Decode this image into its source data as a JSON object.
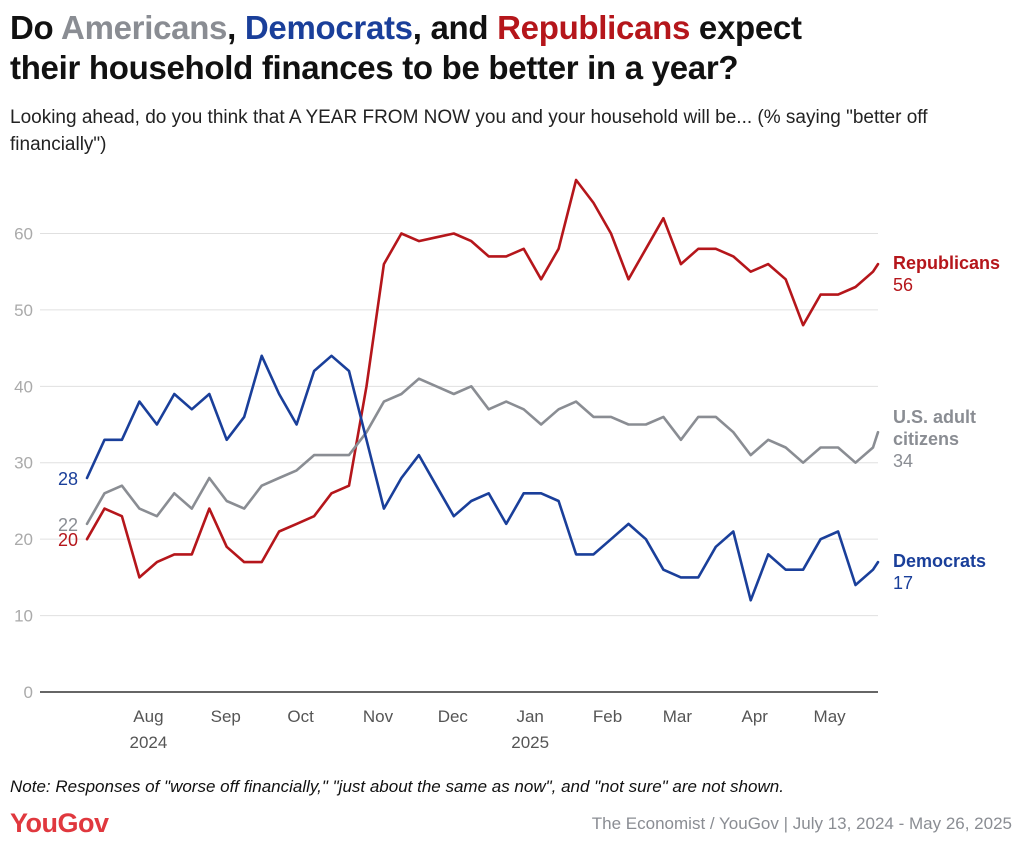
{
  "title": {
    "part1": "Do ",
    "americans": "Americans",
    "part2": ", ",
    "democrats": "Democrats",
    "part3": ", and ",
    "republicans": "Republicans",
    "part4": " expect",
    "line2": "their household finances to be better in a year?"
  },
  "subtitle": "Looking ahead, do you think that A YEAR FROM NOW you and your household will be... (% saying \"better off financially\")",
  "note": "Note: Responses of \"worse off financially,\" \"just about the same as now\", and \"not sure\" are not shown.",
  "logo": "YouGov",
  "source": "The Economist / YouGov | July 13, 2024 - May 26, 2025",
  "colors": {
    "Republicans": "#b5161b",
    "Democrats": "#1a3f9a",
    "U.S. adult citizens": "#8a8d93",
    "grid": "#e0e0e0",
    "axis": "#333333",
    "tick": "#aaaaaa"
  },
  "chart_data": {
    "type": "line",
    "ylim": [
      0,
      67
    ],
    "yticks": [
      0,
      10,
      20,
      30,
      40,
      50,
      60
    ],
    "grid": "horizontal",
    "xlim": [
      "2024-07-13",
      "2025-05-26"
    ],
    "xticks": [
      {
        "date": "2024-08-01",
        "label": "Aug",
        "sub": "2024"
      },
      {
        "date": "2024-09-01",
        "label": "Sep",
        "sub": ""
      },
      {
        "date": "2024-10-01",
        "label": "Oct",
        "sub": ""
      },
      {
        "date": "2024-11-01",
        "label": "Nov",
        "sub": ""
      },
      {
        "date": "2024-12-01",
        "label": "Dec",
        "sub": ""
      },
      {
        "date": "2025-01-01",
        "label": "Jan",
        "sub": "2025"
      },
      {
        "date": "2025-02-01",
        "label": "Feb",
        "sub": ""
      },
      {
        "date": "2025-03-01",
        "label": "Mar",
        "sub": ""
      },
      {
        "date": "2025-04-01",
        "label": "Apr",
        "sub": ""
      },
      {
        "date": "2025-05-01",
        "label": "May",
        "sub": ""
      }
    ],
    "x": [
      "2024-07-13",
      "2024-07-20",
      "2024-07-27",
      "2024-08-03",
      "2024-08-10",
      "2024-08-17",
      "2024-08-24",
      "2024-08-31",
      "2024-09-07",
      "2024-09-14",
      "2024-09-21",
      "2024-09-28",
      "2024-10-05",
      "2024-10-12",
      "2024-10-19",
      "2024-10-26",
      "2024-11-02",
      "2024-11-09",
      "2024-11-16",
      "2024-11-23",
      "2024-11-30",
      "2024-12-07",
      "2024-12-14",
      "2024-12-21",
      "2024-12-28",
      "2025-01-04",
      "2025-01-11",
      "2025-01-18",
      "2025-01-25",
      "2025-02-01",
      "2025-02-08",
      "2025-02-15",
      "2025-02-22",
      "2025-03-01",
      "2025-03-08",
      "2025-03-15",
      "2025-03-22",
      "2025-03-29",
      "2025-04-05",
      "2025-04-12",
      "2025-04-19",
      "2025-04-26",
      "2025-05-03",
      "2025-05-10",
      "2025-05-17",
      "2025-05-24",
      "2025-05-26"
    ],
    "series": [
      {
        "name": "Republicans",
        "label_value": "56",
        "values": [
          20,
          24,
          23,
          15,
          17,
          18,
          18,
          24,
          19,
          17,
          17,
          21,
          22,
          23,
          26,
          27,
          40,
          56,
          60,
          59,
          59.5,
          60,
          59,
          57,
          57,
          58,
          54,
          58,
          67,
          64,
          60,
          54,
          58,
          62,
          56,
          58,
          58,
          57,
          55,
          56,
          54,
          48,
          52,
          52,
          53,
          55,
          56
        ]
      },
      {
        "name": "U.S. adult citizens",
        "label_value": "34",
        "values": [
          22,
          26,
          27,
          24,
          23,
          26,
          24,
          28,
          25,
          24,
          27,
          28,
          29,
          31,
          31,
          31,
          34,
          38,
          39,
          41,
          40,
          39,
          40,
          37,
          38,
          37,
          35,
          37,
          38,
          36,
          36,
          35,
          35,
          36,
          33,
          36,
          36,
          34,
          31,
          33,
          32,
          30,
          32,
          32,
          30,
          32,
          34
        ]
      },
      {
        "name": "Democrats",
        "label_value": "17",
        "values": [
          28,
          33,
          33,
          38,
          35,
          39,
          37,
          39,
          33,
          36,
          44,
          39,
          35,
          42,
          44,
          42,
          33,
          24,
          28,
          31,
          27,
          23,
          25,
          26,
          22,
          26,
          26,
          25,
          18,
          18,
          20,
          22,
          20,
          16,
          15,
          15,
          19,
          21,
          12,
          18,
          16,
          16,
          20,
          21,
          14,
          16,
          17
        ]
      }
    ],
    "end_labels": [
      {
        "series": "Republicans",
        "lines": [
          "Republicans"
        ]
      },
      {
        "series": "U.S. adult citizens",
        "lines": [
          "U.S. adult",
          "citizens"
        ]
      },
      {
        "series": "Democrats",
        "lines": [
          "Democrats"
        ]
      }
    ],
    "start_labels": [
      {
        "series": "Democrats",
        "value": "28"
      },
      {
        "series": "U.S. adult citizens",
        "value": "22"
      },
      {
        "series": "Republicans",
        "value": "20"
      }
    ]
  }
}
